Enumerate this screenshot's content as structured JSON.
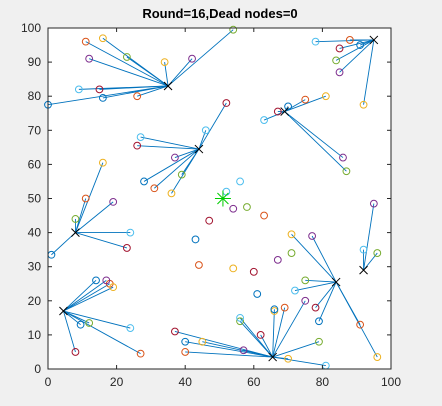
{
  "chart_data": {
    "type": "scatter",
    "title": "Round=16,Dead nodes=0",
    "xlabel": "",
    "ylabel": "",
    "xlim": [
      0,
      100
    ],
    "ylim": [
      0,
      100
    ],
    "xticks": [
      "0",
      "20",
      "40",
      "60",
      "80",
      "100"
    ],
    "yticks": [
      "0",
      "10",
      "20",
      "30",
      "40",
      "50",
      "60",
      "70",
      "80",
      "90",
      "100"
    ],
    "grid": false,
    "legend": "none",
    "colors": {
      "plot_bg": "#ffffff",
      "figure_bg": "#f0f0f0",
      "axis": "#262626",
      "line": "#0072bd",
      "cluster_head": "#000000",
      "base_station": "#00cc00"
    },
    "base_station": [
      51,
      50
    ],
    "cluster_heads": [
      [
        95,
        96.5
      ],
      [
        35,
        83
      ],
      [
        69,
        75.5
      ],
      [
        44,
        64.5
      ],
      [
        8,
        40
      ],
      [
        84,
        25.5
      ],
      [
        92,
        29
      ],
      [
        4.5,
        17
      ],
      [
        65.5,
        3.5
      ]
    ],
    "links": [
      {
        "head": 1,
        "members": [
          [
            0,
            77.5
          ],
          [
            11,
            96
          ],
          [
            16,
            97
          ],
          [
            12,
            91
          ],
          [
            23,
            91.5
          ],
          [
            9,
            82
          ],
          [
            15,
            82
          ],
          [
            16,
            79.5
          ],
          [
            26,
            80
          ],
          [
            34,
            90
          ],
          [
            42,
            91
          ],
          [
            54,
            99.5
          ]
        ]
      },
      {
        "head": 0,
        "members": [
          [
            78,
            96
          ],
          [
            85,
            94
          ],
          [
            91,
            95
          ],
          [
            88,
            96.5
          ],
          [
            92,
            77.5
          ],
          [
            85,
            87
          ],
          [
            84,
            90.5
          ]
        ]
      },
      {
        "head": 2,
        "members": [
          [
            63,
            73
          ],
          [
            67,
            75.5
          ],
          [
            70,
            77
          ],
          [
            75,
            79
          ],
          [
            81,
            80
          ],
          [
            86,
            62
          ],
          [
            87,
            58
          ]
        ]
      },
      {
        "head": 3,
        "members": [
          [
            27,
            68
          ],
          [
            26,
            65.5
          ],
          [
            28,
            55
          ],
          [
            31,
            53
          ],
          [
            36,
            51.5
          ],
          [
            37,
            62
          ],
          [
            39,
            57
          ],
          [
            46,
            70
          ],
          [
            52,
            78
          ]
        ]
      },
      {
        "head": 4,
        "members": [
          [
            1,
            33.5
          ],
          [
            11,
            50
          ],
          [
            16,
            60.5
          ],
          [
            19,
            49
          ],
          [
            8,
            44
          ],
          [
            24,
            40
          ],
          [
            23,
            35.5
          ]
        ]
      },
      {
        "head": 7,
        "members": [
          [
            14,
            26
          ],
          [
            18,
            25
          ],
          [
            19,
            24
          ],
          [
            17,
            26
          ],
          [
            12,
            13.5
          ],
          [
            24,
            12
          ],
          [
            8,
            5
          ],
          [
            9.5,
            13
          ],
          [
            27,
            4.5
          ]
        ]
      },
      {
        "head": 5,
        "members": [
          [
            71,
            39.5
          ],
          [
            77,
            39
          ],
          [
            75,
            26
          ],
          [
            72,
            23
          ],
          [
            78,
            18
          ],
          [
            79,
            14
          ],
          [
            91,
            13
          ],
          [
            96,
            3.5
          ]
        ]
      },
      {
        "head": 6,
        "members": [
          [
            95,
            48.5
          ],
          [
            96,
            34
          ],
          [
            92,
            35
          ]
        ]
      },
      {
        "head": 8,
        "members": [
          [
            37,
            11
          ],
          [
            40,
            8
          ],
          [
            40,
            5
          ],
          [
            45,
            8
          ],
          [
            57,
            5.5
          ],
          [
            56,
            14
          ],
          [
            56,
            15
          ],
          [
            62,
            10
          ],
          [
            66,
            17.5
          ],
          [
            69,
            18
          ],
          [
            70,
            3
          ],
          [
            75,
            20
          ],
          [
            79,
            8
          ],
          [
            81,
            1
          ]
        ]
      }
    ],
    "isolated_nodes": [
      [
        47,
        43.5
      ],
      [
        43,
        38
      ],
      [
        44,
        30.5
      ],
      [
        54,
        29.5
      ],
      [
        54,
        47
      ],
      [
        58,
        47.5
      ],
      [
        56,
        55
      ],
      [
        60,
        28.5
      ],
      [
        61,
        22
      ],
      [
        63,
        45
      ],
      [
        66,
        17
      ],
      [
        67,
        32
      ],
      [
        71,
        34
      ],
      [
        52,
        52
      ]
    ]
  }
}
